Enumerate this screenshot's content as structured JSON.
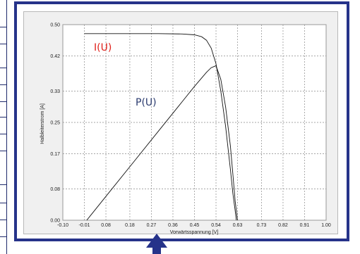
{
  "chart_data": {
    "type": "line",
    "xlabel": "Vorwärtsspannung [V]",
    "ylabel": "Halbleiterstrom [A]",
    "xlim": [
      -0.1,
      1.0
    ],
    "ylim": [
      0.0,
      0.5
    ],
    "x_ticks": [
      "-0.10",
      "-0.01",
      "0.08",
      "0.18",
      "0.27",
      "0.36",
      "0.45",
      "0.54",
      "0.63",
      "0.73",
      "0.82",
      "0.91",
      "1.00"
    ],
    "x_tick_values": [
      -0.1,
      -0.01,
      0.08,
      0.18,
      0.27,
      0.36,
      0.45,
      0.54,
      0.63,
      0.73,
      0.82,
      0.91,
      1.0
    ],
    "y_ticks": [
      "0.00",
      "0.08",
      "0.17",
      "0.25",
      "0.33",
      "0.42",
      "0.50"
    ],
    "y_tick_values": [
      0.0,
      0.08,
      0.17,
      0.25,
      0.33,
      0.42,
      0.5
    ],
    "grid": true,
    "series": [
      {
        "name": "I(U)",
        "color": "#111111",
        "x": [
          -0.01,
          0.1,
          0.2,
          0.3,
          0.4,
          0.45,
          0.48,
          0.5,
          0.52,
          0.54,
          0.56,
          0.58,
          0.6,
          0.61,
          0.62,
          0.625
        ],
        "y": [
          0.477,
          0.477,
          0.477,
          0.477,
          0.476,
          0.474,
          0.469,
          0.46,
          0.44,
          0.4,
          0.33,
          0.24,
          0.13,
          0.07,
          0.025,
          0.0
        ]
      },
      {
        "name": "P(U)",
        "color": "#111111",
        "x": [
          0.0,
          0.1,
          0.2,
          0.3,
          0.4,
          0.45,
          0.5,
          0.52,
          0.54,
          0.56,
          0.58,
          0.6,
          0.61,
          0.62,
          0.63
        ],
        "y": [
          0.0,
          0.076,
          0.152,
          0.228,
          0.304,
          0.342,
          0.378,
          0.39,
          0.395,
          0.36,
          0.29,
          0.19,
          0.12,
          0.05,
          0.0
        ]
      }
    ],
    "series_labels": [
      {
        "text": "I(U)",
        "color": "#e0201a"
      },
      {
        "text": "P(U)",
        "color": "#2a3a6e"
      }
    ]
  }
}
